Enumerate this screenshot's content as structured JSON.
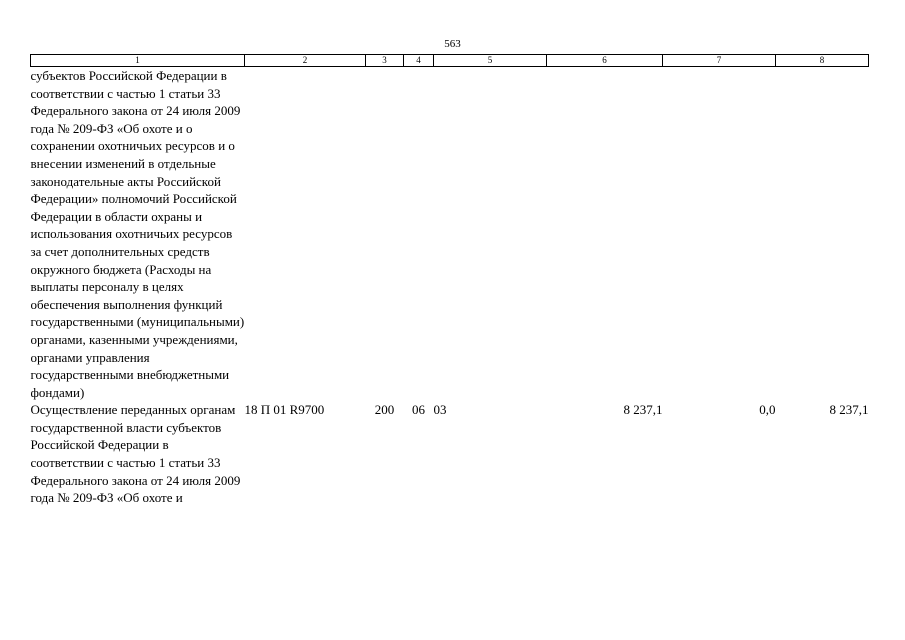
{
  "page": {
    "number": "563"
  },
  "table": {
    "headers": [
      "1",
      "2",
      "3",
      "4",
      "5",
      "6",
      "7",
      "8"
    ],
    "rows": [
      {
        "name": "субъектов Российской Федерации в соответствии с частью 1 статьи 33 Федерального закона от 24 июля 2009 года № 209-ФЗ «Об охоте и о сохранении охотничьих ресурсов и о внесении изменений в отдельные законодательные акты Российской Федерации» полномочий Российской Федерации в области охраны и использования охотничьих ресурсов за счет дополнительных средств окружного бюджета (Расходы на выплаты персоналу в целях обеспечения выполнения функций государственными (муниципальными) органами, казенными учреждениями, органами управления государственными внебюджетными фондами)",
        "csr": "",
        "vr": "",
        "rz": "",
        "pr": "",
        "sum": "",
        "change": "",
        "total": ""
      },
      {
        "name": "Осуществление переданных органам государственной власти субъектов Российской Федерации в соответствии с частью 1 статьи 33 Федерального закона от 24 июля 2009 года № 209-ФЗ «Об охоте и",
        "csr": "18 П 01 R9700",
        "vr": "200",
        "rz": "06",
        "pr": "03",
        "sum": "8 237,1",
        "change": "0,0",
        "total": "8 237,1"
      }
    ]
  }
}
